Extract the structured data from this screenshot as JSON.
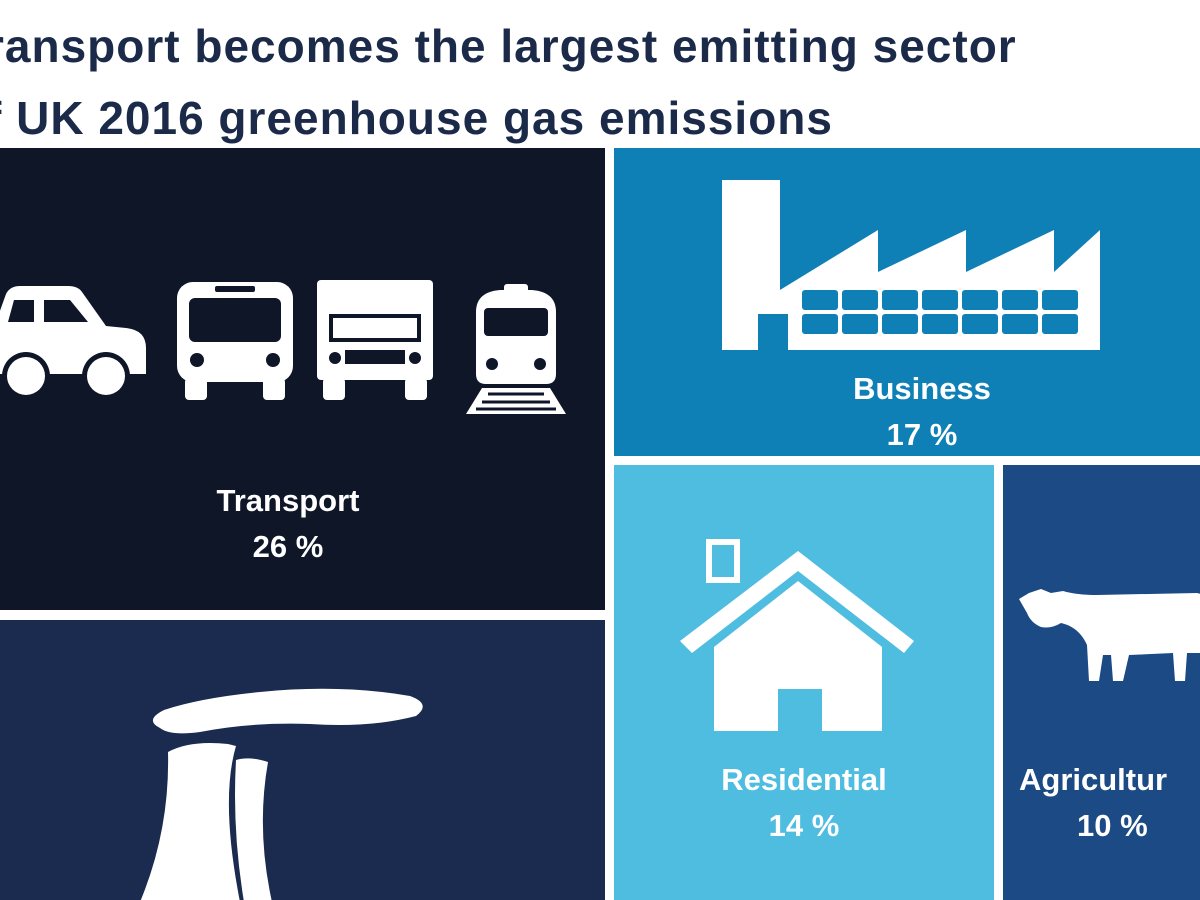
{
  "title": {
    "line1": "ransport becomes the largest emitting sector",
    "line2": "f UK 2016 greenhouse gas emissions"
  },
  "sectors": [
    {
      "name": "Transport",
      "share": "26 %",
      "icons": [
        "car-icon",
        "bus-icon",
        "truck-icon",
        "train-icon"
      ],
      "color": "#0e1628"
    },
    {
      "name": "Business",
      "share": "17 %",
      "icons": [
        "factory-icon"
      ],
      "color": "#0f80b6"
    },
    {
      "name": "Residential",
      "share": "14 %",
      "icons": [
        "house-icon"
      ],
      "color": "#4fbde0"
    },
    {
      "name": "Agricultur",
      "share": "10 %",
      "icons": [
        "cow-icon"
      ],
      "color": "#1b4a85"
    },
    {
      "name": "",
      "share": "",
      "icons": [
        "power-station-icon"
      ],
      "color": "#1b2a4f"
    }
  ]
}
